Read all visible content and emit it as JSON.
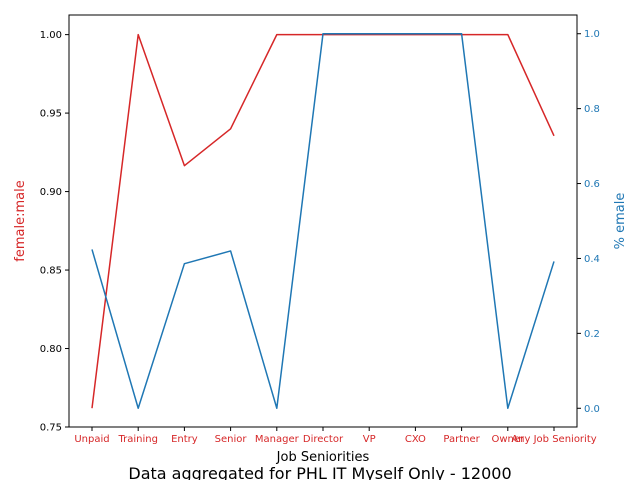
{
  "chart_data": {
    "type": "line",
    "categories": [
      "Unpaid",
      "Training",
      "Entry",
      "Senior",
      "Manager",
      "Director",
      "VP",
      "CXO",
      "Partner",
      "Owner",
      "Any Job Seniority"
    ],
    "series": [
      {
        "axis": "left",
        "color": "#d62728",
        "values": [
          0.762,
          1.0,
          0.9165,
          0.94,
          1.0,
          1.0,
          1.0,
          1.0,
          1.0,
          1.0,
          0.9355
        ]
      },
      {
        "axis": "right",
        "color": "#1f77b4",
        "values": [
          0.424,
          0.0,
          0.386,
          0.42,
          0.0,
          1.0,
          1.0,
          1.0,
          1.0,
          0.0,
          0.392
        ]
      }
    ],
    "xlabel": "Job Seniorities",
    "ylabel_left": "female:male",
    "ylabel_right": "% emale",
    "ylim_left": [
      0.75,
      1.0125
    ],
    "ylim_right": [
      -0.05,
      1.05
    ],
    "yticks_left": [
      0.75,
      0.8,
      0.85,
      0.9,
      0.95,
      1.0
    ],
    "yticks_left_labels": [
      "0.75",
      "0.80",
      "0.85",
      "0.90",
      "0.95",
      "1.00"
    ],
    "yticks_right": [
      0.0,
      0.2,
      0.4,
      0.6,
      0.8,
      1.0
    ],
    "yticks_right_labels": [
      "0.0",
      "0.2",
      "0.4",
      "0.6",
      "0.8",
      "1.0"
    ],
    "left_color": "#d62728",
    "right_color": "#1f77b4",
    "grid": false,
    "footer": "Data aggregated for PHL IT Myself Only - 12000"
  }
}
